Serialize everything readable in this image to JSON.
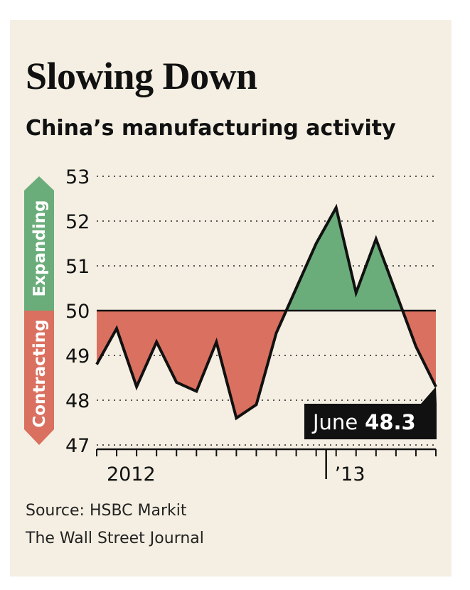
{
  "title": "Slowing Down",
  "subtitle": "China’s manufacturing activity",
  "source": "Source: HSBC Markit",
  "publisher": "The Wall Street Journal",
  "colors": {
    "background": "#f4efe2",
    "expanding": "#6aad7a",
    "contracting": "#da7060",
    "line": "#111111",
    "callout_bg": "#111111"
  },
  "chart_data": {
    "type": "area",
    "title": "Slowing Down",
    "subtitle": "China’s manufacturing activity",
    "baseline": 50,
    "ylim": [
      47,
      53
    ],
    "yticks": [
      "53",
      "52",
      "51",
      "50",
      "49",
      "48",
      "47"
    ],
    "xtick_labels": [
      "2012",
      "’13"
    ],
    "x": [
      "2012-01",
      "2012-02",
      "2012-03",
      "2012-04",
      "2012-05",
      "2012-06",
      "2012-07",
      "2012-08",
      "2012-09",
      "2012-10",
      "2012-11",
      "2012-12",
      "2013-01",
      "2013-02",
      "2013-03",
      "2013-04",
      "2013-05",
      "2013-06"
    ],
    "series": [
      {
        "values": [
          48.8,
          49.6,
          48.3,
          49.3,
          48.4,
          48.2,
          49.3,
          47.6,
          47.9,
          49.5,
          50.5,
          51.5,
          52.3,
          50.4,
          51.6,
          50.4,
          49.2,
          48.3
        ]
      }
    ],
    "regions": {
      "upper": "Expanding",
      "lower": "Contracting"
    },
    "callout": {
      "label": "June",
      "value": "48.3"
    },
    "grid": "dotted horizontal"
  }
}
